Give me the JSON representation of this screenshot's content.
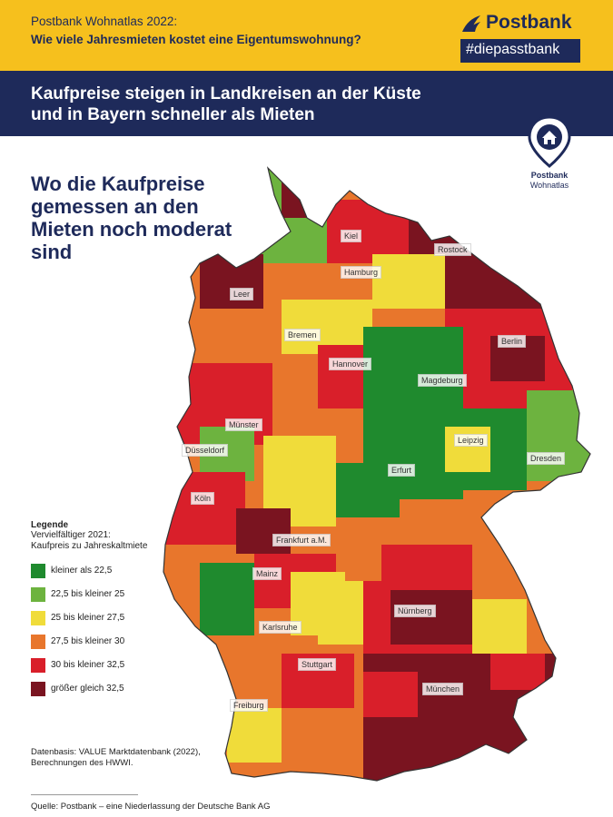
{
  "header": {
    "line1": "Postbank Wohnatlas 2022:",
    "line2": "Wie viele Jahresmieten kostet eine Eigentumswohnung?",
    "brand": "Postbank",
    "tagline": "#diepasstbank",
    "headline_line1": "Kaufpreise steigen in Landkreisen an der Küste",
    "headline_line2": "und in Bayern schneller als Mieten",
    "badge_line1": "Postbank",
    "badge_line2": "Wohnatlas"
  },
  "subtitle": "Wo die Kaufpreise gemessen an den Mieten noch moderat sind",
  "map": {
    "cities": [
      "Kiel",
      "Rostock",
      "Hamburg",
      "Leer",
      "Bremen",
      "Berlin",
      "Hannover",
      "Magdeburg",
      "Münster",
      "Leipzig",
      "Düsseldorf",
      "Erfurt",
      "Dresden",
      "Köln",
      "Frankfurt a.M.",
      "Mainz",
      "Nürnberg",
      "Karlsruhe",
      "Stuttgart",
      "München",
      "Freiburg"
    ]
  },
  "legend": {
    "title": "Legende",
    "subtitle_line1": "Vervielfältiger 2021:",
    "subtitle_line2": "Kaufpreis zu Jahreskaltmiete",
    "items": [
      {
        "label": "kleiner als 22,5",
        "color": "#1f8a2e"
      },
      {
        "label": "22,5 bis kleiner 25",
        "color": "#6db33f"
      },
      {
        "label": "25 bis kleiner 27,5",
        "color": "#f0dc3a"
      },
      {
        "label": "27,5 bis kleiner 30",
        "color": "#e8762c"
      },
      {
        "label": "30 bis kleiner 32,5",
        "color": "#d91f2a"
      },
      {
        "label": "größer gleich 32,5",
        "color": "#7a1420"
      }
    ]
  },
  "footer": {
    "data_line1": "Datenbasis: VALUE Marktdatenbank (2022),",
    "data_line2": "Berechnungen des HWWI.",
    "source": "Quelle: Postbank – eine Niederlassung der Deutsche Bank AG"
  },
  "colors": {
    "yellow": "#f6c01d",
    "navy": "#1e2a5a"
  }
}
